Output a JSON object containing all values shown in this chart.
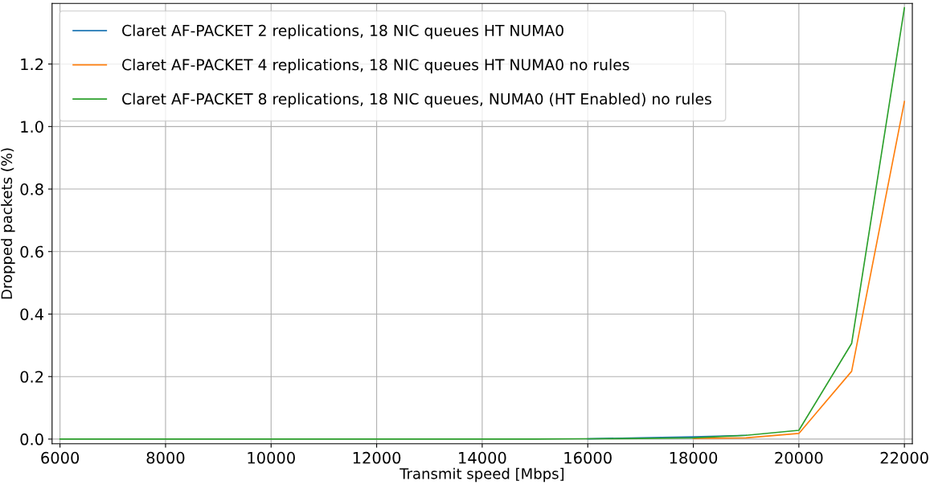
{
  "chart_data": {
    "type": "line",
    "xlabel": "Transmit speed [Mbps]",
    "ylabel": "Dropped packets (%)",
    "x": [
      6000,
      7000,
      8000,
      9000,
      10000,
      11000,
      12000,
      13000,
      14000,
      15000,
      16000,
      17000,
      18000,
      19000,
      20000,
      21000,
      22000
    ],
    "series": [
      {
        "name": "Claret AF-PACKET 2 replications, 18 NIC queues HT NUMA0",
        "color": "#1f77b4",
        "values": [
          null,
          null,
          null,
          null,
          null,
          null,
          null,
          null,
          null,
          null,
          0.001,
          0.004,
          0.007,
          0.012,
          null,
          null,
          null
        ]
      },
      {
        "name": "Claret AF-PACKET 4 replications, 18 NIC queues HT NUMA0 no rules",
        "color": "#ff7f0e",
        "values": [
          null,
          null,
          null,
          null,
          null,
          null,
          null,
          null,
          null,
          null,
          null,
          null,
          0.002,
          0.004,
          0.018,
          0.217,
          1.08
        ]
      },
      {
        "name": "Claret AF-PACKET 8 replications, 18 NIC queues, NUMA0 (HT Enabled) no rules",
        "color": "#2ca02c",
        "values": [
          0,
          0,
          0,
          0,
          0,
          0,
          0,
          0,
          0,
          0,
          0.001,
          0.002,
          0.004,
          0.012,
          0.028,
          0.306,
          1.38
        ]
      }
    ],
    "xlim": [
      5850,
      22150
    ],
    "ylim": [
      -0.015,
      1.394
    ],
    "xticks": [
      6000,
      8000,
      10000,
      12000,
      14000,
      16000,
      18000,
      20000,
      22000
    ],
    "yticks": [
      {
        "value": 0,
        "label": "0.0"
      },
      0.2,
      0.4,
      0.6,
      0.8,
      {
        "value": 1,
        "label": "1.0"
      },
      1.2
    ],
    "grid": true,
    "legend": "top left"
  }
}
